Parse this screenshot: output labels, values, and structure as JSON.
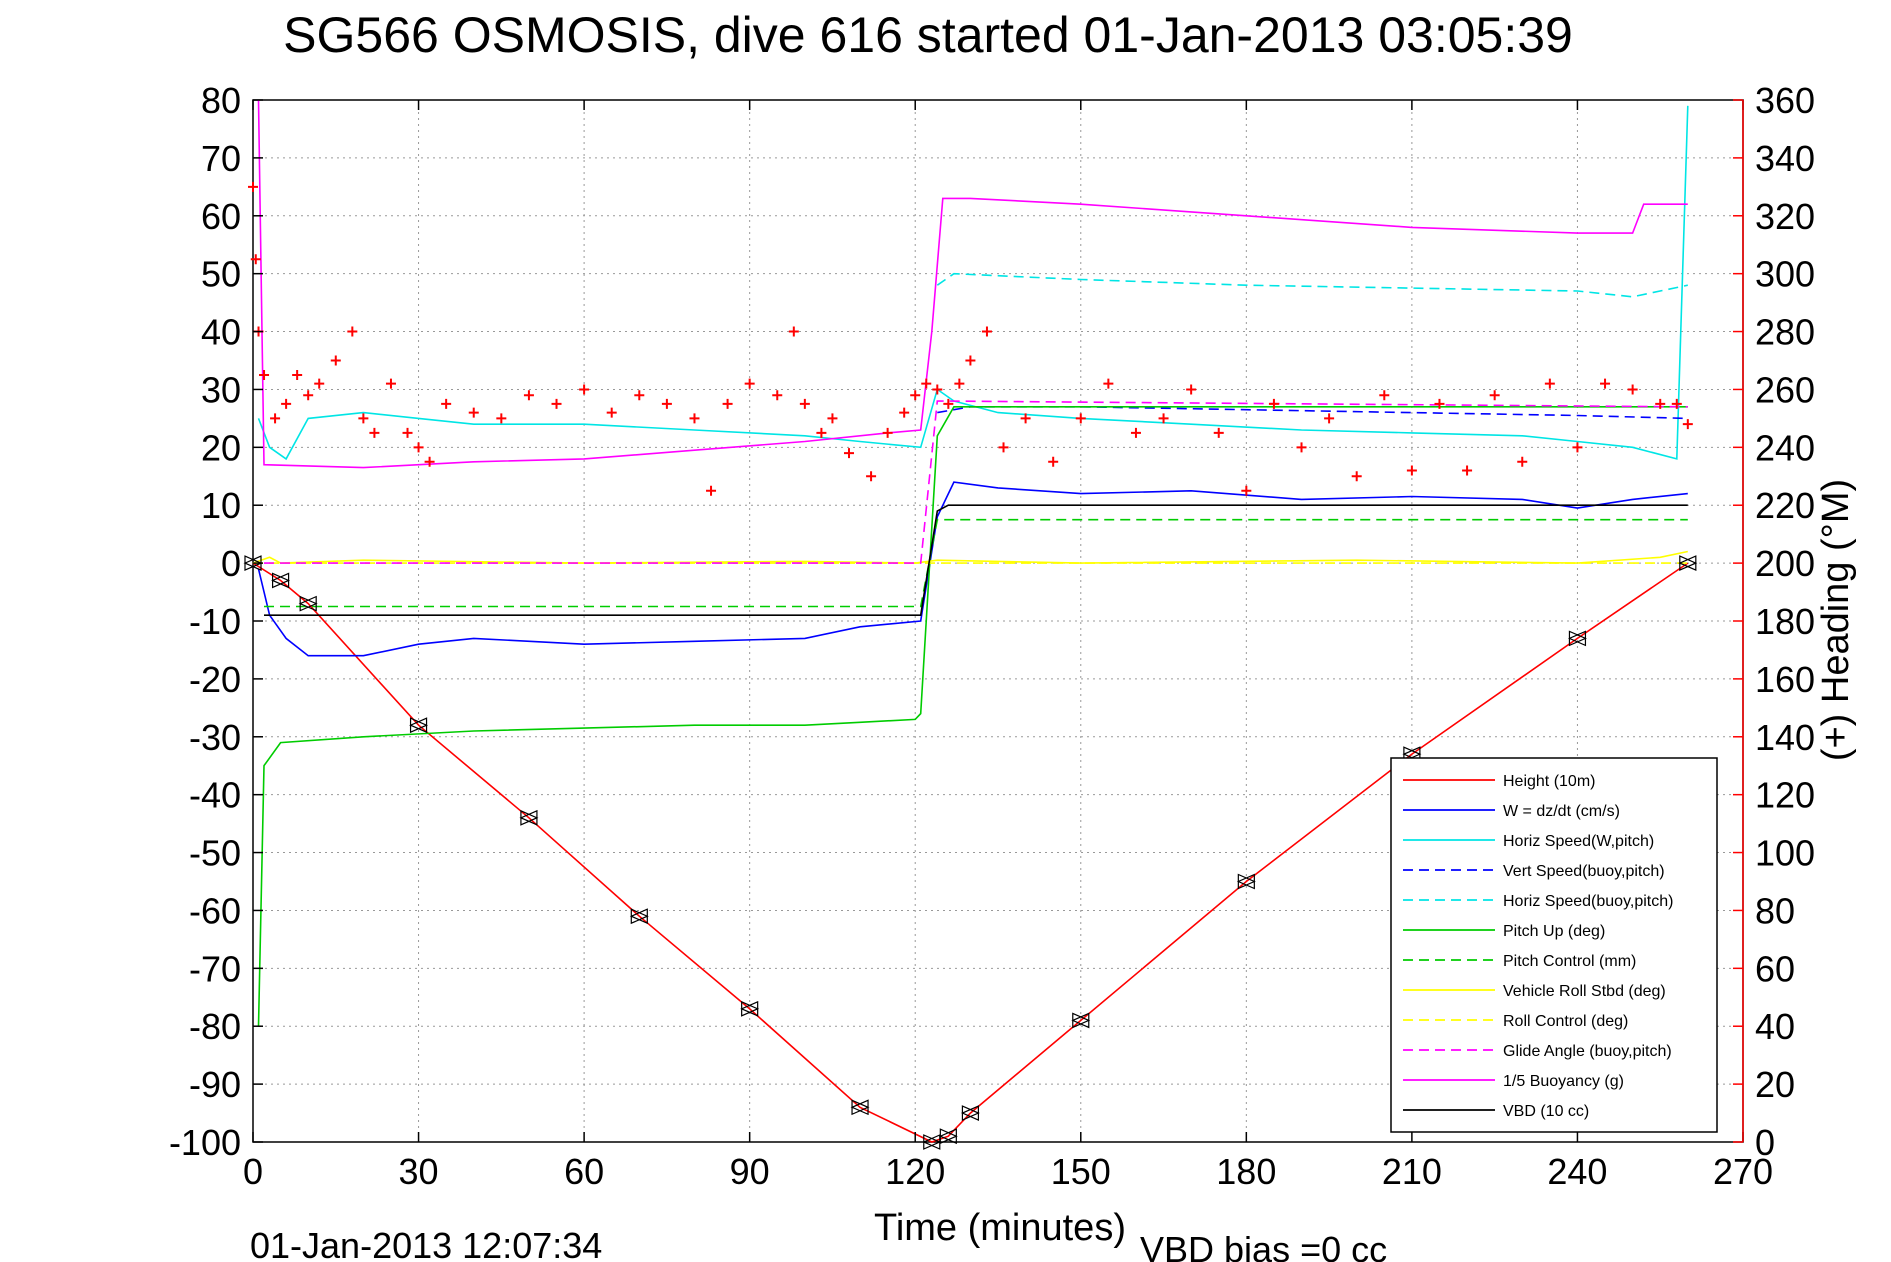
{
  "chart_data": {
    "type": "line",
    "title": "SG566 OSMOSIS, dive 616 started 01-Jan-2013 03:05:39",
    "xlabel": "Time (minutes)",
    "ylabel_right": "(+) Heading (°M)",
    "footer_left": "01-Jan-2013 12:07:34",
    "footer_right": "VBD bias =0 cc",
    "xlim": [
      0,
      270
    ],
    "ylim": [
      -100,
      80
    ],
    "ylim_right": [
      0,
      360
    ],
    "xticks": [
      0,
      30,
      60,
      90,
      120,
      150,
      180,
      210,
      240,
      270
    ],
    "yticks": [
      80,
      70,
      60,
      50,
      40,
      30,
      20,
      10,
      0,
      -10,
      -20,
      -30,
      -40,
      -50,
      -60,
      -70,
      -80,
      -90,
      -100
    ],
    "yticks_right": [
      360,
      340,
      320,
      300,
      280,
      260,
      240,
      220,
      200,
      180,
      160,
      140,
      120,
      100,
      80,
      60,
      40,
      20,
      0
    ],
    "grid": true,
    "legend_position": "lower-right",
    "colors": {
      "right_axis": "#ff0000",
      "heading_marker": "#ff0000",
      "depth_marker": "#000000"
    },
    "series": [
      {
        "name": "Height (10m)",
        "color": "#ff0000",
        "dash": "solid",
        "x": [
          0,
          5,
          10,
          30,
          50,
          70,
          90,
          110,
          123,
          126,
          130,
          150,
          180,
          210,
          240,
          260
        ],
        "y": [
          0,
          -3,
          -7,
          -28,
          -44,
          -61,
          -77,
          -94,
          -100,
          -99,
          -95,
          -79,
          -55,
          -33,
          -13,
          0
        ]
      },
      {
        "name": "W = dz/dt (cm/s)",
        "color": "#0000ff",
        "dash": "solid",
        "x": [
          1,
          3,
          6,
          10,
          20,
          30,
          40,
          60,
          80,
          100,
          110,
          121,
          124,
          127,
          135,
          150,
          170,
          190,
          210,
          230,
          240,
          250,
          260
        ],
        "y": [
          -1,
          -9,
          -13,
          -16,
          -16,
          -14,
          -13,
          -14,
          -13.5,
          -13,
          -11,
          -10,
          8,
          14,
          13,
          12,
          12.5,
          11,
          11.5,
          11,
          9.5,
          11,
          12
        ]
      },
      {
        "name": "Horiz Speed(W,pitch)",
        "color": "#00e5e5",
        "dash": "solid",
        "x": [
          1,
          3,
          6,
          10,
          20,
          30,
          40,
          60,
          80,
          100,
          110,
          121,
          124,
          127,
          135,
          150,
          170,
          190,
          210,
          230,
          240,
          250,
          258,
          260
        ],
        "y": [
          25,
          20,
          18,
          25,
          26,
          25,
          24,
          24,
          23,
          22,
          21,
          20,
          30,
          28,
          26,
          25,
          24,
          23,
          22.5,
          22,
          21,
          20,
          18,
          79
        ]
      },
      {
        "name": "Vert Speed(buoy,pitch)",
        "color": "#0000ff",
        "dash": "dashed",
        "x": [
          124,
          130,
          150,
          180,
          210,
          240,
          260
        ],
        "y": [
          26,
          27,
          27,
          26.5,
          26,
          25.5,
          25
        ]
      },
      {
        "name": "Horiz Speed(buoy,pitch)",
        "color": "#00e5e5",
        "dash": "dashed",
        "x": [
          124,
          127,
          150,
          180,
          210,
          240,
          250,
          260
        ],
        "y": [
          48,
          50,
          49,
          48,
          47.5,
          47,
          46,
          48
        ]
      },
      {
        "name": "Pitch Up (deg)",
        "color": "#00cc00",
        "dash": "solid",
        "x": [
          1,
          2,
          5,
          20,
          40,
          60,
          80,
          100,
          110,
          120,
          121,
          124,
          127,
          150,
          180,
          210,
          240,
          260
        ],
        "y": [
          -80,
          -35,
          -31,
          -30,
          -29,
          -28.5,
          -28,
          -28,
          -27.5,
          -27,
          -26,
          22,
          27,
          27,
          27,
          27,
          27,
          27
        ]
      },
      {
        "name": "Pitch Control (mm)",
        "color": "#00cc00",
        "dash": "dashed",
        "x": [
          2,
          121,
          124,
          260
        ],
        "y": [
          -7.5,
          -7.5,
          7.5,
          7.5
        ]
      },
      {
        "name": "Vehicle Roll Stbd (deg)",
        "color": "#ffff00",
        "dash": "solid",
        "x": [
          0,
          3,
          5,
          20,
          60,
          100,
          120,
          124,
          150,
          200,
          240,
          255,
          260
        ],
        "y": [
          0,
          1,
          0,
          0.5,
          0,
          0.3,
          0,
          0.5,
          0,
          0.5,
          0,
          1,
          2
        ]
      },
      {
        "name": "Roll Control (deg)",
        "color": "#ffff00",
        "dash": "dashed",
        "x": [
          0,
          260
        ],
        "y": [
          0,
          0
        ]
      },
      {
        "name": "Glide Angle (buoy,pitch)",
        "color": "#ff00ff",
        "dash": "dashed",
        "x": [
          2,
          121,
          124,
          260
        ],
        "y": [
          0,
          0,
          28,
          27
        ]
      },
      {
        "name": "1/5 Buoyancy (g)",
        "color": "#ff00ff",
        "dash": "solid",
        "x": [
          1,
          2,
          20,
          40,
          60,
          80,
          100,
          115,
          121,
          123,
          125,
          130,
          150,
          180,
          210,
          240,
          250,
          252,
          260
        ],
        "y": [
          80,
          17,
          16.5,
          17.5,
          18,
          19.5,
          21,
          22.5,
          23,
          40,
          63,
          63,
          62,
          60,
          58,
          57,
          57,
          62,
          62
        ]
      },
      {
        "name": "VBD (10 cc)",
        "color": "#000000",
        "dash": "solid",
        "x": [
          2,
          121,
          124,
          126,
          260
        ],
        "y": [
          -9,
          -9,
          9,
          10,
          10
        ]
      }
    ],
    "heading": {
      "name": "Heading",
      "marker": "+",
      "color": "#ff0000",
      "axis": "right",
      "x": [
        0,
        0.5,
        1,
        2,
        4,
        6,
        8,
        10,
        12,
        15,
        18,
        20,
        22,
        25,
        28,
        30,
        32,
        35,
        40,
        45,
        50,
        55,
        60,
        65,
        70,
        75,
        80,
        83,
        86,
        90,
        95,
        98,
        100,
        103,
        105,
        108,
        112,
        115,
        118,
        120,
        122,
        124,
        126,
        128,
        130,
        133,
        136,
        140,
        145,
        150,
        155,
        160,
        165,
        170,
        175,
        180,
        185,
        190,
        195,
        200,
        205,
        210,
        215,
        220,
        225,
        230,
        235,
        240,
        245,
        250,
        255,
        258,
        260
      ],
      "y": [
        330,
        305,
        280,
        265,
        250,
        255,
        265,
        258,
        262,
        270,
        280,
        250,
        245,
        262,
        245,
        240,
        235,
        255,
        252,
        250,
        258,
        255,
        260,
        252,
        258,
        255,
        250,
        225,
        255,
        262,
        258,
        280,
        255,
        245,
        250,
        238,
        230,
        245,
        252,
        258,
        262,
        260,
        255,
        262,
        270,
        280,
        240,
        250,
        235,
        250,
        262,
        245,
        250,
        260,
        245,
        225,
        255,
        240,
        250,
        230,
        258,
        232,
        255,
        232,
        258,
        235,
        262,
        240,
        262,
        260,
        255,
        255,
        248
      ]
    }
  }
}
